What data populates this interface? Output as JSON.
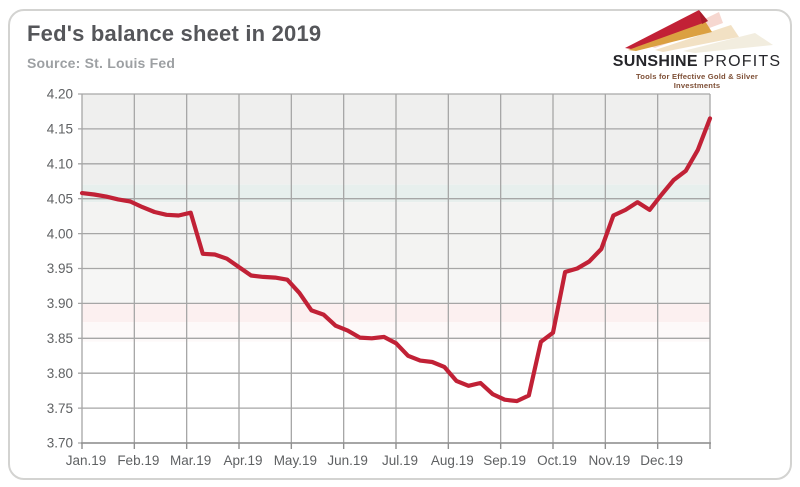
{
  "header": {
    "title": "Fed's balance sheet in 2019",
    "source": "Source: St. Louis Fed"
  },
  "logo": {
    "brand_primary": "SUNSHINE",
    "brand_secondary": " PROFITS",
    "tagline": "Tools for Effective Gold & Silver Investments",
    "arrow_red": "#c22136",
    "arrow_gold": "#dba041"
  },
  "chart_data": {
    "type": "line",
    "title": "Fed's balance sheet in 2019",
    "source": "St. Louis Fed",
    "x_labels": [
      "Jan.19",
      "Feb.19",
      "Mar.19",
      "Apr.19",
      "May.19",
      "Jun.19",
      "Jul.19",
      "Aug.19",
      "Sep.19",
      "Oct.19",
      "Nov.19",
      "Dec.19"
    ],
    "y_tick_labels": [
      "4.20",
      "4.15",
      "4.10",
      "4.05",
      "4.00",
      "3.95",
      "3.90",
      "3.85",
      "3.80",
      "3.75",
      "3.70"
    ],
    "ylim": [
      3.7,
      4.2
    ],
    "x_span": "weekly observations, Jan 2019 - Dec 2019",
    "grid": true,
    "legend": "none",
    "series": [
      {
        "name": "Fed's balance sheet (USD trillion)",
        "values": [
          4.058,
          4.056,
          4.053,
          4.049,
          4.046,
          4.038,
          4.031,
          4.027,
          4.026,
          4.03,
          3.971,
          3.97,
          3.964,
          3.952,
          3.94,
          3.938,
          3.937,
          3.934,
          3.915,
          3.89,
          3.884,
          3.868,
          3.861,
          3.851,
          3.85,
          3.852,
          3.843,
          3.825,
          3.818,
          3.816,
          3.809,
          3.789,
          3.782,
          3.786,
          3.77,
          3.762,
          3.76,
          3.768,
          3.845,
          3.858,
          3.945,
          3.95,
          3.96,
          3.978,
          4.026,
          4.034,
          4.045,
          4.034,
          4.056,
          4.077,
          4.09,
          4.12,
          4.165
        ]
      }
    ],
    "line_color": "#c12136",
    "grid_color": "#a6a6a6",
    "axis_color": "#8f8f8f",
    "label_color": "#5f6163",
    "background_bands": [
      {
        "from": 4.2,
        "to": 4.07,
        "color": "#efefee"
      },
      {
        "from": 4.07,
        "to": 4.045,
        "color": "#e7efed"
      },
      {
        "from": 4.045,
        "to": 3.95,
        "color": "#f3f3f2"
      },
      {
        "from": 3.95,
        "to": 3.9,
        "color": "#f6f6f5"
      },
      {
        "from": 3.9,
        "to": 3.873,
        "color": "#fcf0f0"
      },
      {
        "from": 3.873,
        "to": 3.845,
        "color": "#fdf9f9"
      },
      {
        "from": 3.845,
        "to": 3.7,
        "color": "#ffffff"
      }
    ]
  }
}
